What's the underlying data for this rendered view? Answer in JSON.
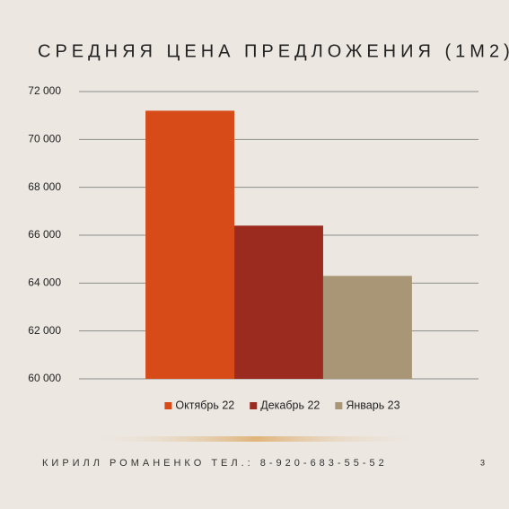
{
  "chart_data": {
    "type": "bar",
    "title": "СРЕДНЯЯ ЦЕНА ПРЕДЛОЖЕНИЯ (1М2)",
    "categories": [
      null
    ],
    "series": [
      {
        "name": "Октябрь 22",
        "color": "#d64b17",
        "values": [
          71200
        ]
      },
      {
        "name": "Декабрь 22",
        "color": "#9c2b1f",
        "values": [
          66400
        ]
      },
      {
        "name": "Январь 23",
        "color": "#a89676",
        "values": [
          64300
        ]
      }
    ],
    "ylim": [
      60000,
      72000
    ],
    "yticks": [
      {
        "value": 60000,
        "label": "60 000"
      },
      {
        "value": 62000,
        "label": "62 000"
      },
      {
        "value": 64000,
        "label": "64 000"
      },
      {
        "value": 66000,
        "label": "66 000"
      },
      {
        "value": 68000,
        "label": "68 000"
      },
      {
        "value": 70000,
        "label": "70 000"
      },
      {
        "value": 72000,
        "label": "72 000"
      }
    ],
    "grid": true,
    "legend": "bottom"
  },
  "footer": "КИРИЛЛ РОМАНЕНКО ТЕЛ.: 8-920-683-55-52",
  "slide_number": 3
}
